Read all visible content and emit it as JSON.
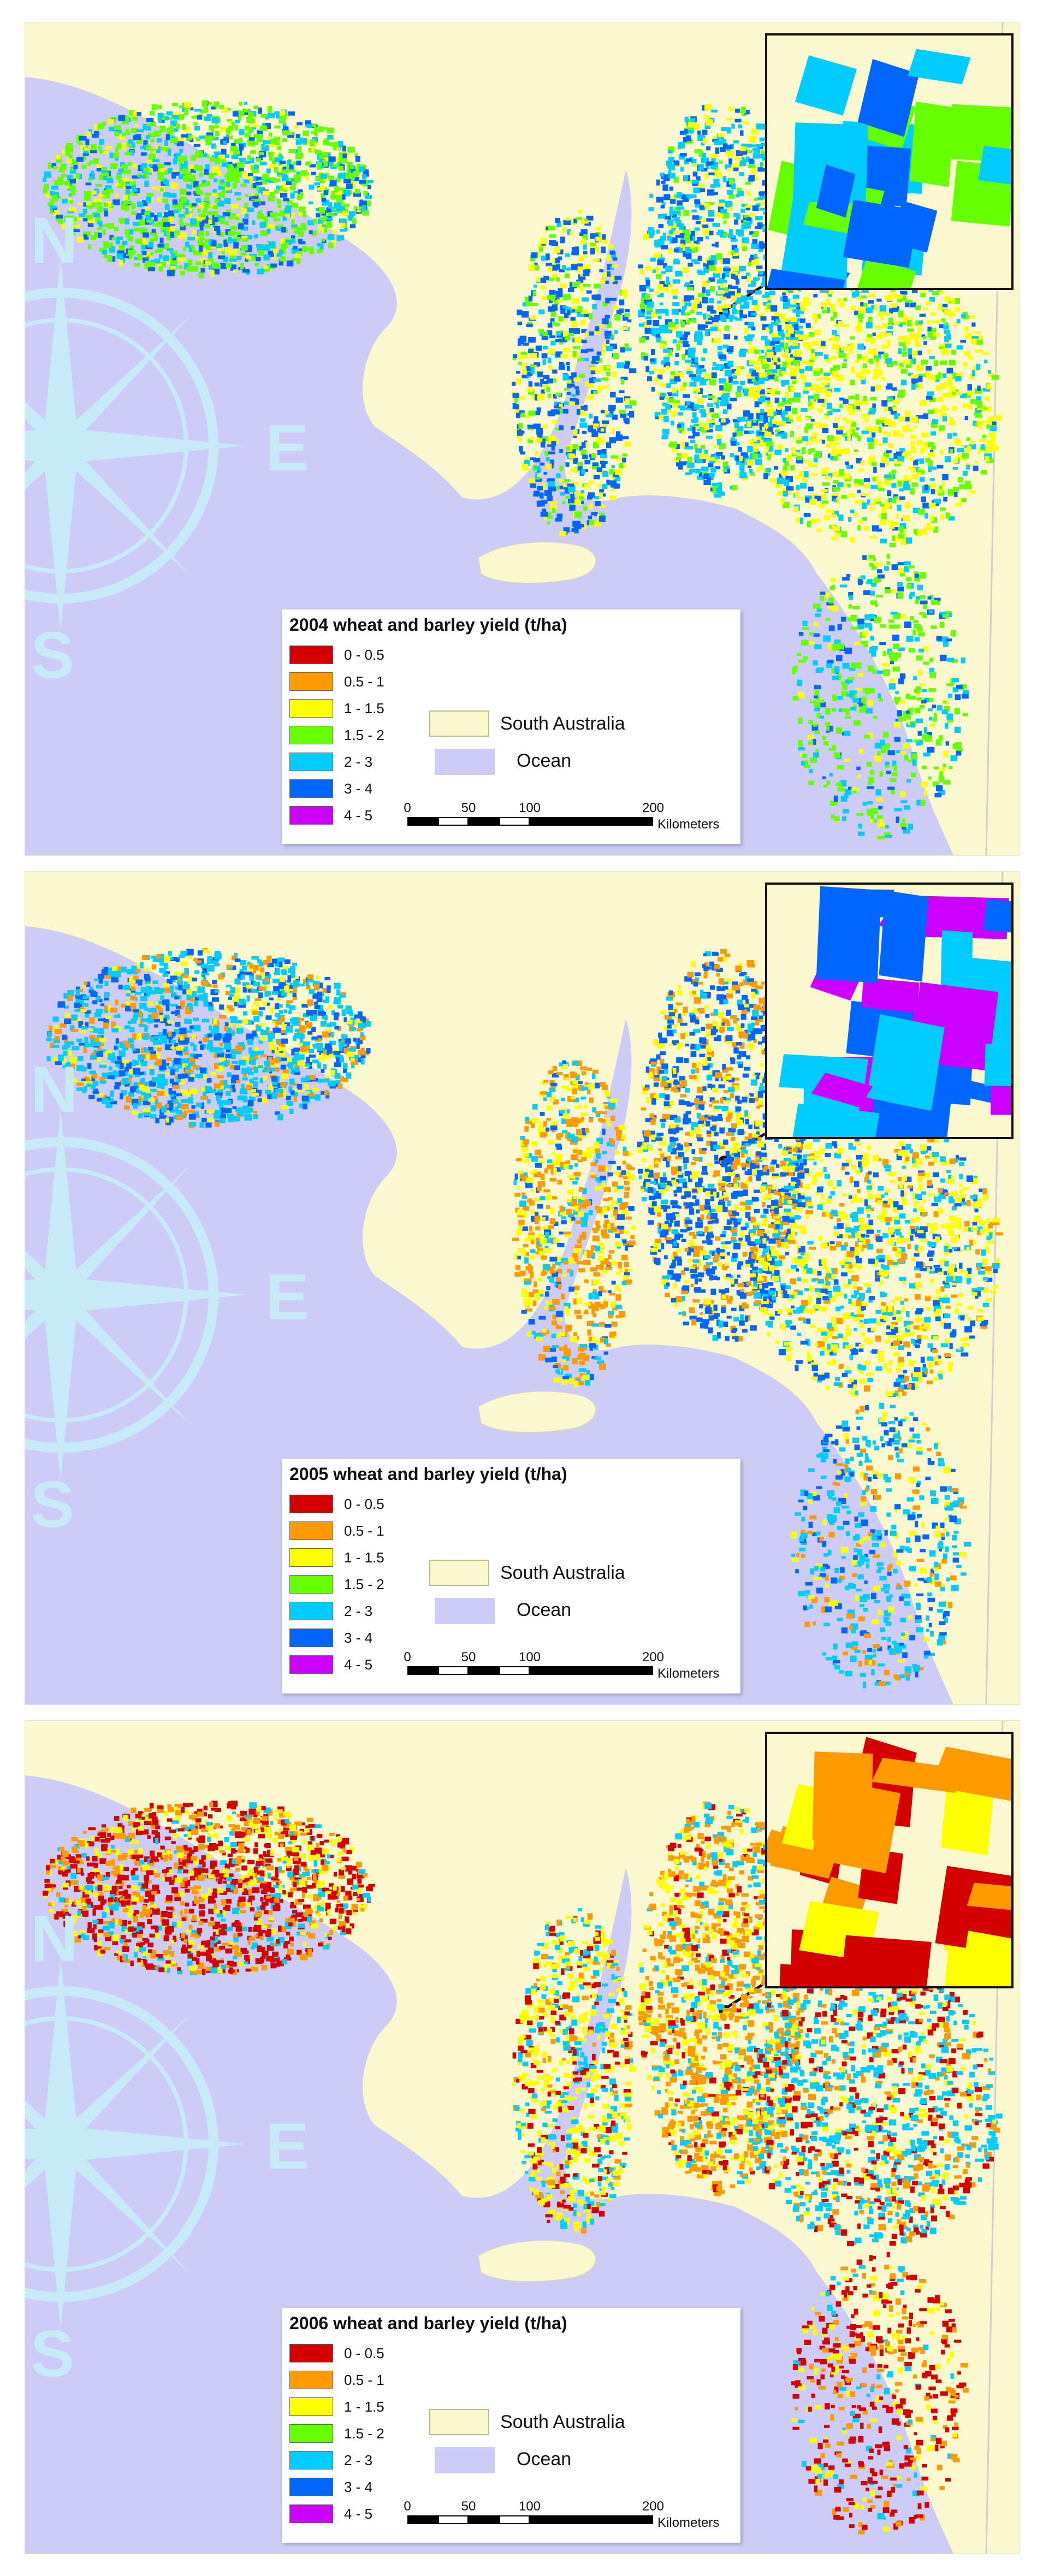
{
  "panels": [
    {
      "year": "2004",
      "legend_title": "2004 wheat and barley yield (t/ha)",
      "dominant_classes": [
        "1.5 - 2",
        "2 - 3",
        "3 - 4",
        "1 - 1.5"
      ],
      "inset_classes": [
        "2 - 3",
        "3 - 4",
        "1.5 - 2"
      ]
    },
    {
      "year": "2005",
      "legend_title": "2005 wheat and barley yield (t/ha)",
      "dominant_classes": [
        "2 - 3",
        "3 - 4",
        "0.5 - 1",
        "1 - 1.5"
      ],
      "inset_classes": [
        "2 - 3",
        "3 - 4",
        "4 - 5"
      ]
    },
    {
      "year": "2006",
      "legend_title": "2006 wheat and barley yield (t/ha)",
      "dominant_classes": [
        "0 - 0.5",
        "0.5 - 1",
        "1 - 1.5",
        "2 - 3"
      ],
      "inset_classes": [
        "0 - 0.5",
        "0.5 - 1",
        "1 - 1.5"
      ]
    }
  ],
  "yield_classes": [
    {
      "label": "0 - 0.5",
      "color": "#d40000"
    },
    {
      "label": "0.5 - 1",
      "color": "#ff9a00"
    },
    {
      "label": "1 - 1.5",
      "color": "#ffff00"
    },
    {
      "label": "1.5 - 2",
      "color": "#66ff00"
    },
    {
      "label": "2 - 3",
      "color": "#00ccff"
    },
    {
      "label": "3 - 4",
      "color": "#0066ff"
    },
    {
      "label": "4 - 5",
      "color": "#cc00ff"
    }
  ],
  "map_legend": {
    "land_label": "South Australia",
    "land_color": "#fbf8cf",
    "ocean_label": "Ocean",
    "ocean_color": "#ccccf7"
  },
  "scale_bar": {
    "ticks": [
      "0",
      "50",
      "100",
      "200"
    ],
    "unit": "Kilometers"
  },
  "compass": {
    "north": "N",
    "east": "E",
    "south": "S"
  }
}
